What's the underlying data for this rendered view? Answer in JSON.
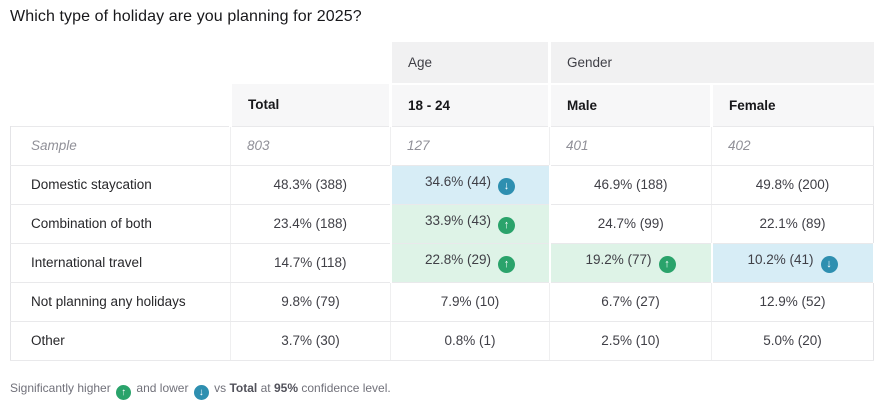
{
  "title": "Which type of holiday are you planning for 2025?",
  "table": {
    "group_headers": [
      {
        "label": "Age",
        "span": 1
      },
      {
        "label": "Gender",
        "span": 2
      }
    ],
    "column_headers": [
      "Total",
      "18 - 24",
      "Male",
      "Female"
    ],
    "sample_row": {
      "label": "Sample",
      "values": [
        "803",
        "127",
        "401",
        "402"
      ]
    },
    "rows": [
      {
        "label": "Domestic staycation",
        "cells": [
          {
            "text": "48.3% (388)"
          },
          {
            "text": "34.6% (44)",
            "sig": "lower"
          },
          {
            "text": "46.9% (188)"
          },
          {
            "text": "49.8% (200)"
          }
        ]
      },
      {
        "label": "Combination of both",
        "cells": [
          {
            "text": "23.4% (188)"
          },
          {
            "text": "33.9% (43)",
            "sig": "higher"
          },
          {
            "text": "24.7% (99)"
          },
          {
            "text": "22.1% (89)"
          }
        ]
      },
      {
        "label": "International travel",
        "cells": [
          {
            "text": "14.7% (118)"
          },
          {
            "text": "22.8% (29)",
            "sig": "higher"
          },
          {
            "text": "19.2% (77)",
            "sig": "higher"
          },
          {
            "text": "10.2% (41)",
            "sig": "lower"
          }
        ]
      },
      {
        "label": "Not planning any holidays",
        "cells": [
          {
            "text": "9.8% (79)"
          },
          {
            "text": "7.9% (10)"
          },
          {
            "text": "6.7% (27)"
          },
          {
            "text": "12.9% (52)"
          }
        ]
      },
      {
        "label": "Other",
        "cells": [
          {
            "text": "3.7% (30)"
          },
          {
            "text": "0.8% (1)"
          },
          {
            "text": "2.5% (10)"
          },
          {
            "text": "5.0% (20)"
          }
        ]
      }
    ]
  },
  "footer": {
    "part1": "Significantly higher",
    "part2": "and lower",
    "part3": "vs",
    "total": "Total",
    "part4": "at",
    "confidence": "95%",
    "part5": "confidence level."
  },
  "colors": {
    "sig_higher_bg": "#def3e7",
    "sig_lower_bg": "#d7edf6",
    "sig_higher_icon": "#2aa36b",
    "sig_lower_icon": "#2e8fb0",
    "group_header_bg": "#f1f1f2",
    "column_header_bg": "#f7f7f8"
  },
  "chart_data": {
    "type": "table",
    "title": "Which type of holiday are you planning for 2025?",
    "columns": [
      "Total",
      "18 - 24",
      "Male",
      "Female"
    ],
    "column_groups": [
      {
        "label": "Age",
        "columns": [
          "18 - 24"
        ]
      },
      {
        "label": "Gender",
        "columns": [
          "Male",
          "Female"
        ]
      }
    ],
    "sample": [
      803,
      127,
      401,
      402
    ],
    "rows": [
      {
        "label": "Domestic staycation",
        "values": [
          {
            "pct": 48.3,
            "n": 388
          },
          {
            "pct": 34.6,
            "n": 44,
            "significance": "lower"
          },
          {
            "pct": 46.9,
            "n": 188
          },
          {
            "pct": 49.8,
            "n": 200
          }
        ]
      },
      {
        "label": "Combination of both",
        "values": [
          {
            "pct": 23.4,
            "n": 188
          },
          {
            "pct": 33.9,
            "n": 43,
            "significance": "higher"
          },
          {
            "pct": 24.7,
            "n": 99
          },
          {
            "pct": 22.1,
            "n": 89
          }
        ]
      },
      {
        "label": "International travel",
        "values": [
          {
            "pct": 14.7,
            "n": 118
          },
          {
            "pct": 22.8,
            "n": 29,
            "significance": "higher"
          },
          {
            "pct": 19.2,
            "n": 77,
            "significance": "higher"
          },
          {
            "pct": 10.2,
            "n": 41,
            "significance": "lower"
          }
        ]
      },
      {
        "label": "Not planning any holidays",
        "values": [
          {
            "pct": 9.8,
            "n": 79
          },
          {
            "pct": 7.9,
            "n": 10
          },
          {
            "pct": 6.7,
            "n": 27
          },
          {
            "pct": 12.9,
            "n": 52
          }
        ]
      },
      {
        "label": "Other",
        "values": [
          {
            "pct": 3.7,
            "n": 30
          },
          {
            "pct": 0.8,
            "n": 1
          },
          {
            "pct": 2.5,
            "n": 10
          },
          {
            "pct": 5.0,
            "n": 20
          }
        ]
      }
    ],
    "footnote": "Significantly higher (up) and lower (down) vs Total at 95% confidence level."
  }
}
